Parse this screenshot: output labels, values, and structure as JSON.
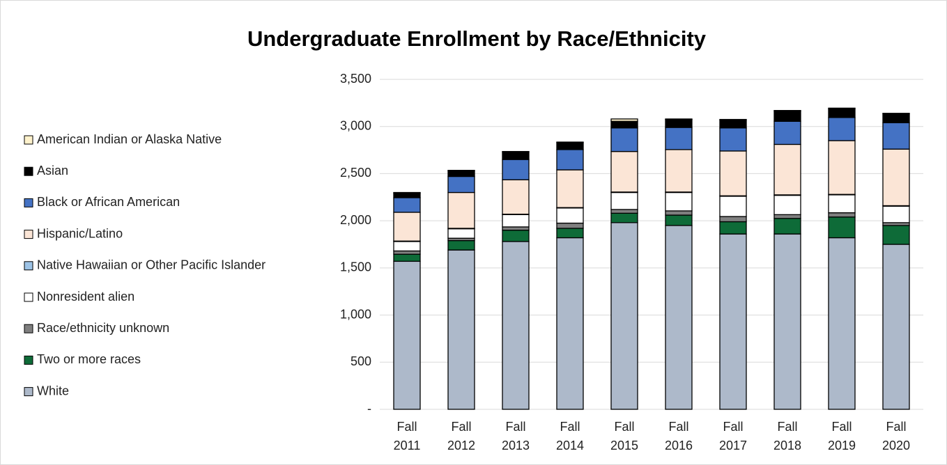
{
  "chart_data": {
    "type": "bar",
    "stacked": true,
    "title": "Undergraduate Enrollment by Race/Ethnicity",
    "categories": [
      "Fall 2011",
      "Fall 2012",
      "Fall 2013",
      "Fall 2014",
      "Fall 2015",
      "Fall 2016",
      "Fall 2017",
      "Fall 2018",
      "Fall 2019",
      "Fall 2020"
    ],
    "series": [
      {
        "name": "White",
        "color": "#adb9ca",
        "values": [
          1570,
          1690,
          1780,
          1820,
          1980,
          1950,
          1860,
          1860,
          1820,
          1750
        ]
      },
      {
        "name": "Two or more races",
        "color": "#0e6b38",
        "values": [
          75,
          100,
          120,
          100,
          100,
          110,
          130,
          165,
          220,
          200
        ]
      },
      {
        "name": "Race/ethnicity unknown",
        "color": "#7f7f7f",
        "values": [
          35,
          25,
          35,
          55,
          40,
          45,
          55,
          40,
          45,
          30
        ]
      },
      {
        "name": "Nonresident alien",
        "color": "#ffffff",
        "values": [
          100,
          100,
          130,
          160,
          180,
          195,
          215,
          205,
          190,
          175
        ]
      },
      {
        "name": "Native Hawaiian or Other Pacific Islander",
        "color": "#9dc3e6",
        "values": [
          5,
          5,
          5,
          5,
          5,
          5,
          5,
          5,
          5,
          5
        ]
      },
      {
        "name": "Hispanic/Latino",
        "color": "#fbe5d6",
        "values": [
          305,
          380,
          365,
          400,
          430,
          450,
          475,
          535,
          570,
          600
        ]
      },
      {
        "name": "Black or African American",
        "color": "#4472c4",
        "values": [
          155,
          170,
          215,
          215,
          250,
          235,
          245,
          245,
          245,
          280
        ]
      },
      {
        "name": "Asian",
        "color": "#000000",
        "values": [
          50,
          60,
          80,
          75,
          70,
          85,
          85,
          110,
          95,
          95
        ]
      },
      {
        "name": "American Indian or Alaska Native",
        "color": "#fff2cc",
        "values": [
          5,
          5,
          5,
          5,
          25,
          5,
          5,
          5,
          5,
          5
        ]
      }
    ],
    "ylim": [
      0,
      3500
    ],
    "yticks": [
      {
        "value": 0,
        "label": "-"
      },
      500,
      {
        "value": 1000,
        "label": "1,000"
      },
      {
        "value": 1500,
        "label": "1,500"
      },
      {
        "value": 2000,
        "label": "2,000"
      },
      {
        "value": 2500,
        "label": "2,500"
      },
      {
        "value": 3000,
        "label": "3,000"
      },
      {
        "value": 3500,
        "label": "3,500"
      }
    ],
    "grid": true,
    "legend": "left"
  }
}
